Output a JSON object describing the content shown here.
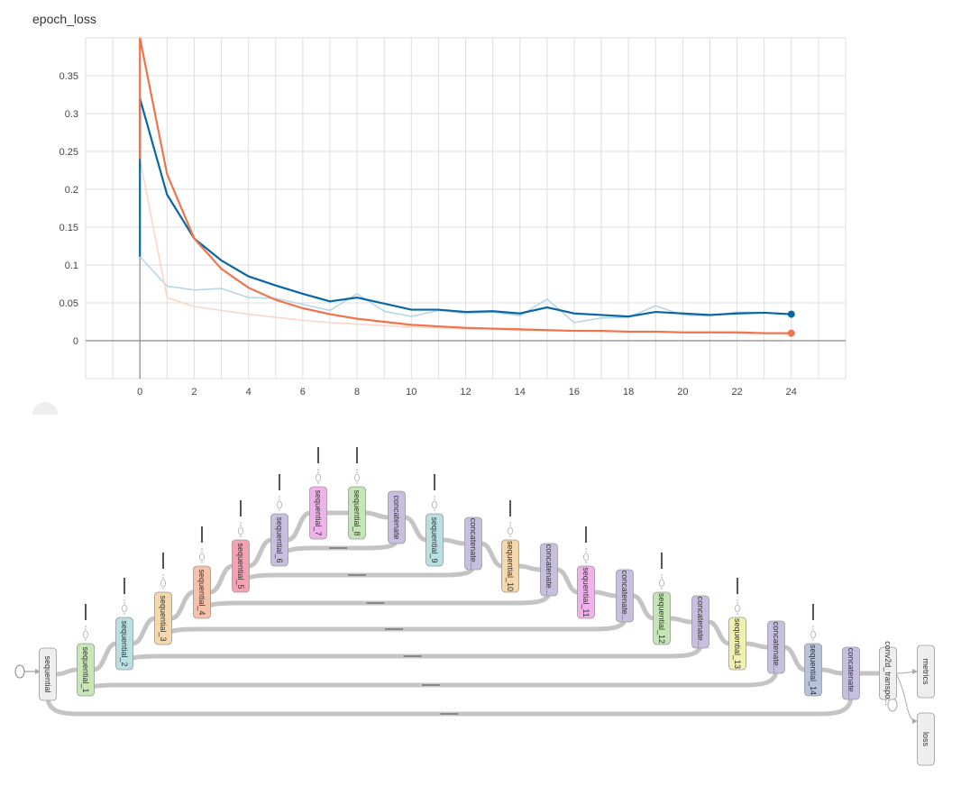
{
  "chart_title": "epoch_loss",
  "chart_data": {
    "type": "line",
    "title": "epoch_loss",
    "xlabel": "",
    "ylabel": "",
    "xlim": [
      -2,
      26
    ],
    "ylim": [
      -0.05,
      0.4
    ],
    "x_ticks": [
      "0",
      "2",
      "4",
      "6",
      "8",
      "10",
      "12",
      "14",
      "16",
      "18",
      "20",
      "22",
      "24"
    ],
    "y_ticks": [
      "0",
      "0.05",
      "0.1",
      "0.15",
      "0.2",
      "0.25",
      "0.3",
      "0.35"
    ],
    "grid": true,
    "series": [
      {
        "color": "#0a67a3",
        "raw_color": "#b3d4e8",
        "x": [
          0,
          1,
          2,
          3,
          4,
          5,
          6,
          7,
          8,
          9,
          10,
          11,
          12,
          13,
          14,
          15,
          16,
          17,
          18,
          19,
          20,
          21,
          22,
          23,
          24
        ],
        "smoothed": [
          0.32,
          0.193,
          0.135,
          0.106,
          0.085,
          0.073,
          0.062,
          0.052,
          0.057,
          0.049,
          0.041,
          0.041,
          0.038,
          0.039,
          0.036,
          0.044,
          0.036,
          0.034,
          0.032,
          0.038,
          0.036,
          0.034,
          0.036,
          0.037,
          0.035
        ],
        "raw": [
          0.111,
          0.072,
          0.067,
          0.069,
          0.057,
          0.056,
          0.048,
          0.04,
          0.062,
          0.039,
          0.032,
          0.04,
          0.036,
          0.038,
          0.033,
          0.055,
          0.024,
          0.03,
          0.031,
          0.046,
          0.034,
          0.033,
          0.038,
          0.037,
          0.035
        ]
      },
      {
        "color": "#f1734c",
        "raw_color": "#fbd4c5",
        "x": [
          0,
          1,
          2,
          3,
          4,
          5,
          6,
          7,
          8,
          9,
          10,
          11,
          12,
          13,
          14,
          15,
          16,
          17,
          18,
          19,
          20,
          21,
          22,
          23,
          24
        ],
        "smoothed": [
          0.4,
          0.22,
          0.135,
          0.095,
          0.07,
          0.054,
          0.043,
          0.035,
          0.029,
          0.025,
          0.021,
          0.019,
          0.017,
          0.016,
          0.015,
          0.014,
          0.013,
          0.013,
          0.012,
          0.012,
          0.011,
          0.011,
          0.011,
          0.01,
          0.01
        ],
        "raw": [
          0.24,
          0.057,
          0.045,
          0.04,
          0.035,
          0.031,
          0.027,
          0.024,
          0.022,
          0.02,
          0.018,
          0.017,
          0.016,
          0.015,
          0.014,
          0.014,
          0.013,
          0.012,
          0.012,
          0.012,
          0.011,
          0.011,
          0.01,
          0.01,
          0.01
        ]
      }
    ]
  },
  "graph": {
    "colors": {
      "sequential": "#eeeeee",
      "sequential_1": "#c9e6b5",
      "sequential_2": "#b9dfe0",
      "sequential_3": "#f6d8ad",
      "sequential_4": "#f6c0a9",
      "sequential_5": "#f4a1b2",
      "sequential_6": "#c7bfe0",
      "sequential_7": "#f0b2ea",
      "sequential_8": "#c4e6b7",
      "sequential_9": "#b9dfe0",
      "sequential_10": "#f6d8ad",
      "sequential_11": "#f0b2ea",
      "sequential_12": "#c4e6b7",
      "sequential_13": "#f0f0b0",
      "sequential_14": "#b6c3d8",
      "concatenate": "#c7bfe0"
    },
    "nodes": [
      {
        "id": "sequential",
        "label": "sequential"
      },
      {
        "id": "sequential_1",
        "label": "sequential_1"
      },
      {
        "id": "sequential_2",
        "label": "sequential_2"
      },
      {
        "id": "sequential_3",
        "label": "sequential_3"
      },
      {
        "id": "sequential_4",
        "label": "sequential_4"
      },
      {
        "id": "sequential_5",
        "label": "sequential_5"
      },
      {
        "id": "sequential_6",
        "label": "sequential_6"
      },
      {
        "id": "sequential_7",
        "label": "sequential_7"
      },
      {
        "id": "sequential_8",
        "label": "sequential_8"
      },
      {
        "id": "concatenate_1",
        "label": "concatenate"
      },
      {
        "id": "sequential_9",
        "label": "sequential_9"
      },
      {
        "id": "concatenate_2",
        "label": "concatenate..."
      },
      {
        "id": "sequential_10",
        "label": "sequential_10"
      },
      {
        "id": "concatenate_3",
        "label": "concatenate..."
      },
      {
        "id": "sequential_11",
        "label": "sequential_11"
      },
      {
        "id": "concatenate_4",
        "label": "concatenate..."
      },
      {
        "id": "sequential_12",
        "label": "sequential_12"
      },
      {
        "id": "concatenate_5",
        "label": "concatenate..."
      },
      {
        "id": "sequential_13",
        "label": "sequential_13"
      },
      {
        "id": "concatenate_6",
        "label": "concatenate..."
      },
      {
        "id": "sequential_14",
        "label": "sequential_14"
      },
      {
        "id": "concatenate_7",
        "label": "concatenate..."
      },
      {
        "id": "conv2d_transpose",
        "label": "conv2d_transpo..."
      },
      {
        "id": "metrics",
        "label": "metrics"
      },
      {
        "id": "loss",
        "label": "loss"
      }
    ]
  }
}
